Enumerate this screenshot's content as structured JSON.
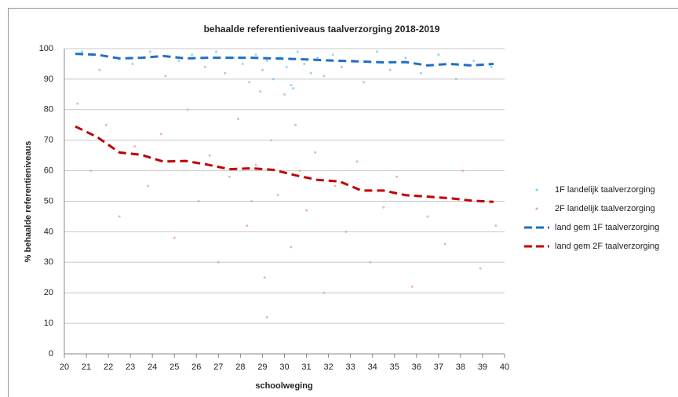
{
  "chart_data": {
    "type": "scatter",
    "title": "behaalde referentieniveaus taalverzorging 2018-2019",
    "xlabel": "schoolweging",
    "ylabel": "% behaalde referentieniveaus",
    "xlim": [
      20,
      40
    ],
    "xticks": [
      20,
      21,
      22,
      23,
      24,
      25,
      26,
      27,
      28,
      29,
      30,
      31,
      32,
      33,
      34,
      35,
      36,
      37,
      38,
      39,
      40
    ],
    "ylim": [
      0,
      100
    ],
    "yticks": [
      0,
      10,
      20,
      30,
      40,
      50,
      60,
      70,
      80,
      90,
      100
    ],
    "grid": true,
    "series": [
      {
        "name": "1F landelijk taalverzorging",
        "type": "scatter",
        "color": "#7ec8ee",
        "x": [
          20.8,
          21.6,
          22.3,
          23.1,
          23.9,
          24.6,
          25.2,
          25.8,
          26.4,
          26.9,
          27.3,
          27.7,
          28.1,
          28.4,
          28.7,
          29.0,
          29.2,
          29.5,
          29.8,
          30.1,
          30.3,
          30.6,
          30.9,
          31.2,
          31.5,
          31.8,
          32.2,
          32.6,
          33.1,
          33.6,
          34.2,
          34.8,
          35.5,
          36.2,
          37.0,
          37.8,
          38.6,
          39.4,
          28.9,
          30.4
        ],
        "values": [
          99,
          93,
          97,
          95,
          99,
          91,
          96,
          98,
          94,
          99,
          92,
          97,
          95,
          89,
          98,
          93,
          96,
          90,
          97,
          94,
          88,
          99,
          95,
          92,
          97,
          91,
          98,
          94,
          96,
          89,
          99,
          93,
          97,
          92,
          98,
          90,
          96,
          94,
          86,
          87
        ]
      },
      {
        "name": "2F landelijk taalverzorging",
        "type": "scatter",
        "color": "#f0a0a0",
        "x": [
          20.6,
          21.2,
          21.9,
          22.5,
          23.2,
          23.8,
          24.4,
          25.0,
          25.6,
          26.1,
          26.6,
          27.0,
          27.5,
          27.9,
          28.3,
          28.7,
          29.1,
          29.4,
          29.7,
          30.0,
          30.3,
          30.7,
          31.0,
          31.4,
          31.8,
          32.3,
          32.8,
          33.3,
          33.9,
          34.5,
          35.1,
          35.8,
          36.5,
          37.3,
          38.1,
          38.9,
          39.6,
          29.2,
          30.5,
          28.5
        ],
        "values": [
          82,
          60,
          75,
          45,
          68,
          55,
          72,
          38,
          80,
          50,
          65,
          30,
          58,
          77,
          42,
          62,
          25,
          70,
          52,
          85,
          35,
          60,
          47,
          66,
          20,
          55,
          40,
          63,
          30,
          48,
          58,
          22,
          45,
          36,
          60,
          28,
          42,
          12,
          75,
          50
        ]
      },
      {
        "name": "land gem 1F taalverzorging",
        "type": "line",
        "color": "#1f6fc6",
        "x": [
          20.5,
          21.5,
          22.5,
          23.5,
          24.5,
          25.5,
          26.5,
          27.5,
          28.5,
          29.5,
          30.5,
          31.5,
          32.5,
          33.5,
          34.5,
          35.5,
          36.5,
          37.5,
          38.5,
          39.5
        ],
        "values": [
          98.3,
          98.0,
          96.8,
          97.0,
          97.6,
          96.8,
          97.0,
          97.0,
          97.0,
          96.8,
          96.6,
          96.3,
          96.0,
          95.8,
          95.5,
          95.6,
          94.5,
          95.0,
          94.5,
          95.0
        ]
      },
      {
        "name": "land gem 2F taalverzorging",
        "type": "line",
        "color": "#c00000",
        "x": [
          20.5,
          21.5,
          22.5,
          23.5,
          24.5,
          25.5,
          26.5,
          27.5,
          28.5,
          29.5,
          30.5,
          31.5,
          32.5,
          33.5,
          34.5,
          35.5,
          36.5,
          37.5,
          38.5,
          39.5
        ],
        "values": [
          74.5,
          71,
          66,
          65.2,
          63,
          63.2,
          62,
          60.5,
          60.8,
          60.3,
          58.5,
          57,
          56.5,
          53.5,
          53.5,
          52,
          51.5,
          51,
          50.2,
          49.8
        ]
      }
    ]
  }
}
